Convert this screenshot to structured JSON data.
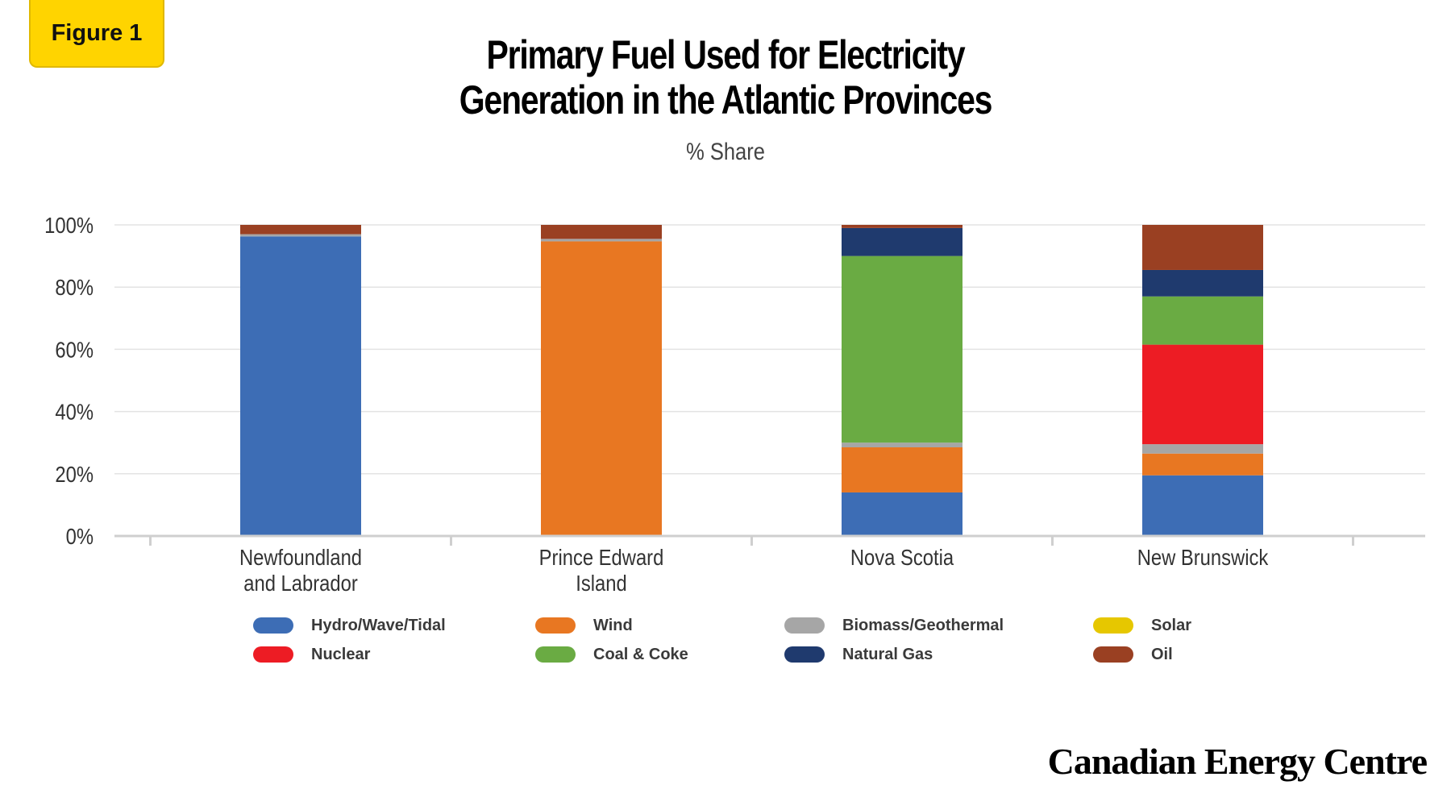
{
  "badge": "Figure 1",
  "title_lines": [
    "Primary Fuel Used for Electricity",
    "Generation in the Atlantic Provinces"
  ],
  "brand": "Canadian Energy Centre",
  "chart_data": {
    "type": "bar",
    "stacked": true,
    "subtitle": "% Share",
    "categories": [
      [
        "Newfoundland",
        "and Labrador"
      ],
      [
        "Prince Edward",
        "Island"
      ],
      [
        "Nova Scotia"
      ],
      [
        "New Brunswick"
      ]
    ],
    "ylim": [
      0,
      100
    ],
    "yticks": [
      0,
      20,
      40,
      60,
      80,
      100
    ],
    "ytick_labels": [
      "0%",
      "20%",
      "40%",
      "60%",
      "80%",
      "100%"
    ],
    "grid": true,
    "legend_position": "bottom",
    "series": [
      {
        "name": "Hydro/Wave/Tidal",
        "color": "#3d6db5",
        "values": [
          96.3,
          0,
          14,
          19.5
        ]
      },
      {
        "name": "Wind",
        "color": "#e87722",
        "values": [
          0,
          94.7,
          14.5,
          7
        ]
      },
      {
        "name": "Biomass/Geothermal",
        "color": "#a6a6a6",
        "values": [
          0.7,
          0.8,
          1.5,
          3
        ]
      },
      {
        "name": "Solar",
        "color": "#e6c700",
        "values": [
          0,
          0,
          0,
          0
        ]
      },
      {
        "name": "Nuclear",
        "color": "#ed1c24",
        "values": [
          0,
          0,
          0,
          32
        ]
      },
      {
        "name": "Coal & Coke",
        "color": "#6aab43",
        "values": [
          0,
          0,
          60,
          15.5
        ]
      },
      {
        "name": "Natural Gas",
        "color": "#1f3a6e",
        "values": [
          0,
          0,
          9,
          8.5
        ]
      },
      {
        "name": "Oil",
        "color": "#9a4022",
        "values": [
          3,
          4.5,
          1,
          14.5
        ]
      }
    ],
    "legend_order": [
      "Hydro/Wave/Tidal",
      "Wind",
      "Biomass/Geothermal",
      "Solar",
      "Nuclear",
      "Coal & Coke",
      "Natural Gas",
      "Oil"
    ]
  }
}
